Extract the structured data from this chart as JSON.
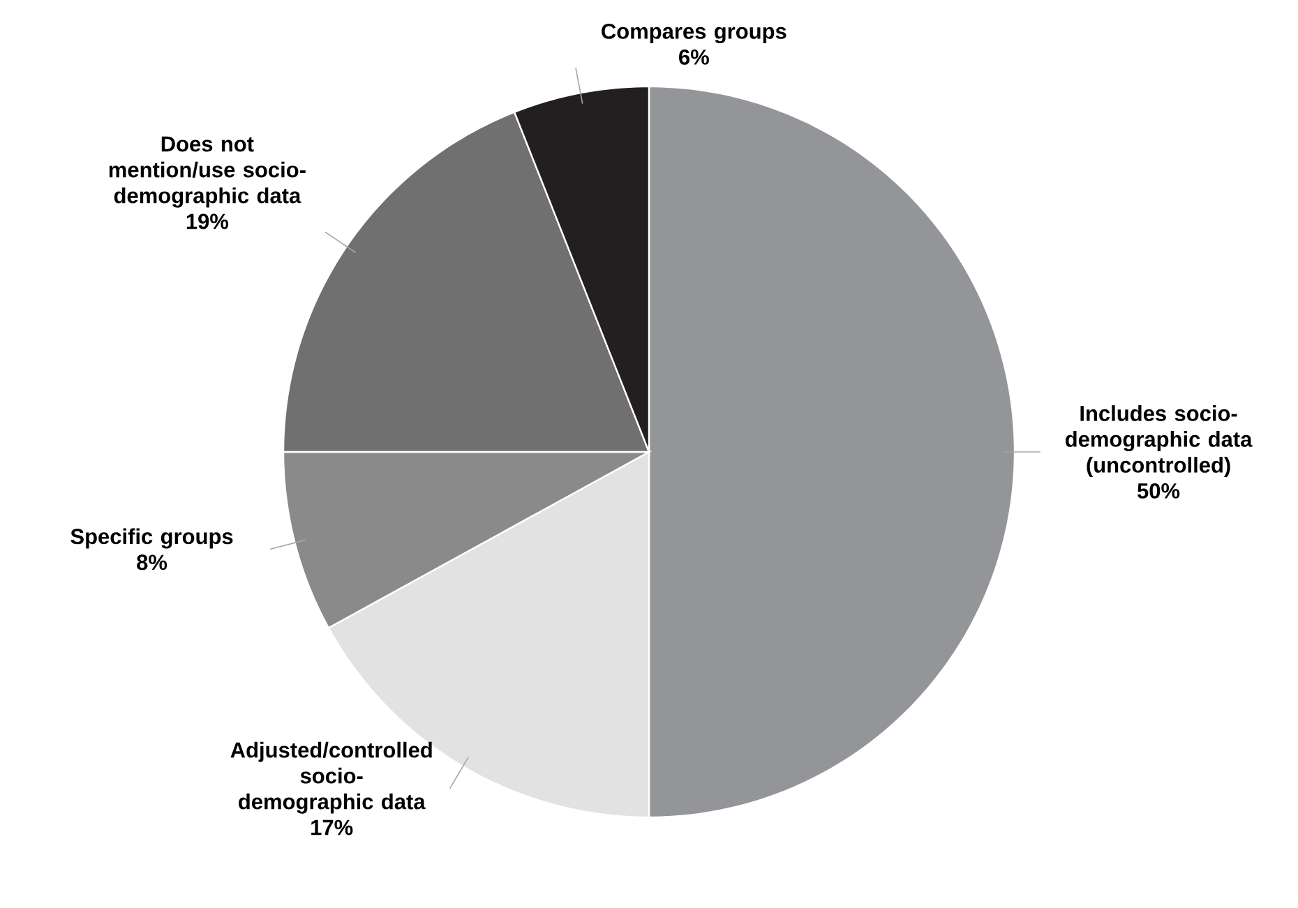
{
  "chart_data": {
    "type": "pie",
    "categories": [
      "Includes socio-demographic data (uncontrolled)",
      "Adjusted/controlled socio-demographic data",
      "Specific groups",
      "Does not mention/use socio-demographic data",
      "Compares groups"
    ],
    "values": [
      50,
      17,
      8,
      19,
      6
    ],
    "value_labels": [
      "50%",
      "17%",
      "8%",
      "19%",
      "6%"
    ],
    "colors": [
      "#939598",
      "#e2e2e2",
      "#8a8a8a",
      "#707070",
      "#231f20"
    ]
  }
}
